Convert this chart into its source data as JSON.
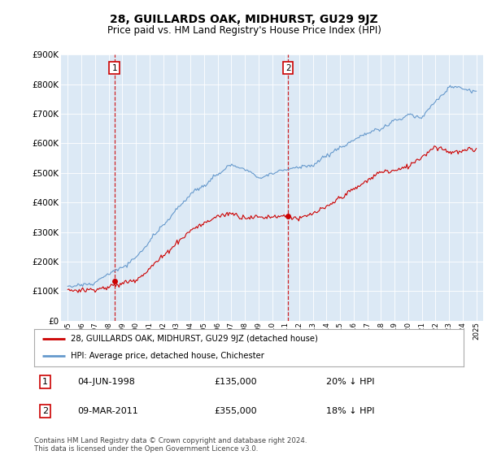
{
  "title": "28, GUILLARDS OAK, MIDHURST, GU29 9JZ",
  "subtitle": "Price paid vs. HM Land Registry's House Price Index (HPI)",
  "legend_line1": "28, GUILLARDS OAK, MIDHURST, GU29 9JZ (detached house)",
  "legend_line2": "HPI: Average price, detached house, Chichester",
  "annotation1_date": "04-JUN-1998",
  "annotation1_price": "£135,000",
  "annotation1_hpi": "20% ↓ HPI",
  "annotation2_date": "09-MAR-2011",
  "annotation2_price": "£355,000",
  "annotation2_hpi": "18% ↓ HPI",
  "footer": "Contains HM Land Registry data © Crown copyright and database right 2024.\nThis data is licensed under the Open Government Licence v3.0.",
  "sale1_year": 1998.42,
  "sale1_price": 135000,
  "sale2_year": 2011.18,
  "sale2_price": 355000,
  "red_color": "#cc0000",
  "blue_color": "#6699cc",
  "background_color": "#ffffff",
  "chart_bg_color": "#dce9f5",
  "grid_color": "#ffffff",
  "ylim": [
    0,
    900000
  ],
  "xlim_start": 1994.5,
  "xlim_end": 2025.5
}
